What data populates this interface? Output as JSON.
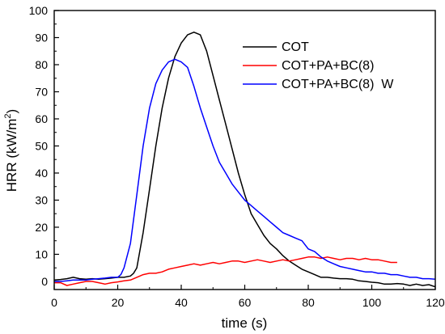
{
  "chart_data": {
    "type": "line",
    "xlabel": "time (s)",
    "ylabel_main": "HRR (kW/m",
    "ylabel_sup": "2",
    "ylabel_tail": ")",
    "xlim": [
      0,
      120
    ],
    "ylim": [
      -3,
      100
    ],
    "xticks": [
      0,
      20,
      40,
      60,
      80,
      100,
      120
    ],
    "yticks": [
      0,
      10,
      20,
      30,
      40,
      50,
      60,
      70,
      80,
      90,
      100
    ],
    "grid": false,
    "legend_position": "top-right",
    "series": [
      {
        "name": "COT",
        "color": "#000000",
        "x": [
          0,
          2,
          4,
          6,
          8,
          10,
          12,
          14,
          16,
          18,
          20,
          22,
          24,
          25,
          26,
          28,
          30,
          32,
          34,
          36,
          38,
          40,
          42,
          44,
          46,
          48,
          50,
          52,
          54,
          56,
          58,
          60,
          62,
          64,
          66,
          68,
          70,
          72,
          74,
          76,
          78,
          80,
          82,
          84,
          86,
          88,
          90,
          92,
          94,
          96,
          98,
          100,
          102,
          104,
          106,
          108,
          110,
          112,
          114,
          116,
          118,
          120
        ],
        "y": [
          0.5,
          0.7,
          1.0,
          1.5,
          1.0,
          0.8,
          1.0,
          0.8,
          1.0,
          1.2,
          1.5,
          1.5,
          2.0,
          3.0,
          5.0,
          18,
          34,
          50,
          64,
          75,
          83,
          88,
          91,
          92,
          91,
          85,
          76,
          67,
          58,
          49,
          40,
          32,
          25,
          21,
          17,
          14,
          12,
          9.5,
          7.5,
          6.0,
          4.5,
          3.5,
          2.5,
          1.5,
          1.5,
          1.2,
          1.0,
          1.0,
          0.8,
          0.2,
          0,
          -0.3,
          -0.5,
          -1.0,
          -1.0,
          -0.8,
          -1.0,
          -1.5,
          -1.0,
          -1.5,
          -1.2,
          -2.0
        ]
      },
      {
        "name": "COT+PA+BC(8)",
        "color": "#ff0000",
        "x": [
          0,
          2,
          4,
          6,
          8,
          10,
          12,
          14,
          16,
          18,
          20,
          22,
          24,
          26,
          28,
          30,
          32,
          34,
          36,
          38,
          40,
          42,
          44,
          46,
          48,
          50,
          52,
          54,
          56,
          58,
          60,
          62,
          64,
          66,
          68,
          70,
          72,
          74,
          76,
          78,
          80,
          82,
          84,
          86,
          88,
          90,
          92,
          94,
          96,
          98,
          100,
          102,
          104,
          106,
          108
        ],
        "y": [
          -0.5,
          -0.5,
          -1.5,
          -1.0,
          -0.5,
          0,
          0,
          -0.5,
          -1.0,
          -0.5,
          -0.2,
          0.2,
          0.5,
          1.5,
          2.5,
          3.0,
          3.0,
          3.5,
          4.5,
          5.0,
          5.5,
          6.0,
          6.5,
          6.0,
          6.5,
          7.0,
          6.5,
          7.0,
          7.5,
          7.5,
          7.0,
          7.5,
          8.0,
          7.5,
          7.0,
          7.5,
          8.0,
          7.5,
          8.0,
          8.5,
          9.0,
          9.0,
          8.5,
          9.0,
          8.5,
          8.0,
          8.5,
          8.5,
          8.0,
          8.5,
          8.0,
          8.0,
          7.5,
          7.0,
          7.0
        ]
      },
      {
        "name": "COT+PA+BC(8)  W",
        "color": "#0000ff",
        "x": [
          0,
          2,
          4,
          6,
          8,
          10,
          12,
          14,
          16,
          18,
          20,
          21,
          22,
          24,
          26,
          28,
          30,
          32,
          34,
          36,
          38,
          40,
          42,
          44,
          46,
          48,
          50,
          52,
          54,
          56,
          58,
          60,
          62,
          64,
          66,
          68,
          70,
          72,
          74,
          76,
          78,
          80,
          82,
          84,
          86,
          88,
          90,
          92,
          94,
          96,
          98,
          100,
          102,
          104,
          106,
          108,
          110,
          112,
          114,
          116,
          118,
          120
        ],
        "y": [
          0,
          0,
          0.2,
          0.5,
          0.5,
          0.5,
          0.8,
          1.0,
          1.2,
          1.5,
          1.5,
          2.5,
          5.0,
          14,
          32,
          50,
          64,
          73,
          78,
          81,
          82,
          81,
          79,
          72,
          64,
          57,
          50,
          44,
          40,
          36,
          33,
          30,
          28,
          26,
          24,
          22,
          20,
          18,
          17,
          16,
          15,
          12,
          11,
          9.0,
          7.5,
          6.5,
          5.5,
          5.0,
          4.5,
          4.0,
          3.5,
          3.5,
          3.0,
          3.0,
          2.5,
          2.5,
          2.0,
          1.5,
          1.5,
          1.0,
          1.0,
          0.8
        ]
      }
    ]
  }
}
